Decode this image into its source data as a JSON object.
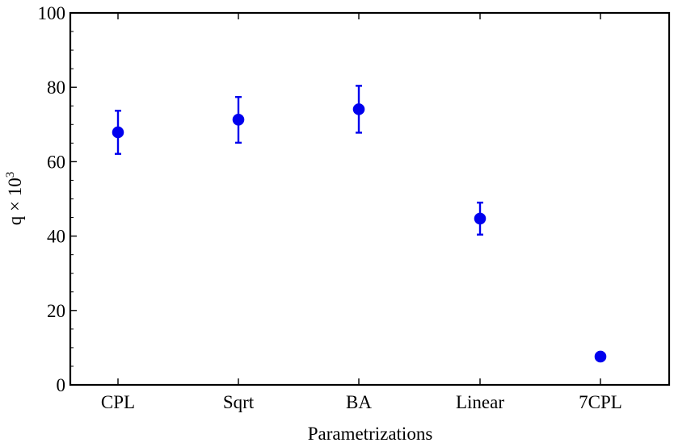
{
  "chart_data": {
    "type": "scatter",
    "title": "",
    "xlabel": "Parametrizations",
    "ylabel": "q × 10",
    "ylabel_superscript": "3",
    "categories": [
      "CPL",
      "Sqrt",
      "BA",
      "Linear",
      "7CPL"
    ],
    "series": [
      {
        "values": [
          67.9,
          71.3,
          74.1,
          44.7,
          7.6
        ],
        "err_low": [
          5.8,
          6.2,
          6.3,
          4.3,
          0
        ],
        "err_high": [
          5.8,
          6.1,
          6.3,
          4.3,
          0
        ]
      }
    ],
    "ylim": [
      0,
      100
    ],
    "yticks": [
      0,
      20,
      40,
      60,
      80,
      100
    ],
    "ytick_labels": [
      "0",
      "20",
      "40",
      "60",
      "80",
      "100"
    ],
    "y_minor_step": 5,
    "grid": false,
    "legend": "none",
    "colors": {
      "marker": "#0000ee",
      "axes": "#000000"
    }
  }
}
